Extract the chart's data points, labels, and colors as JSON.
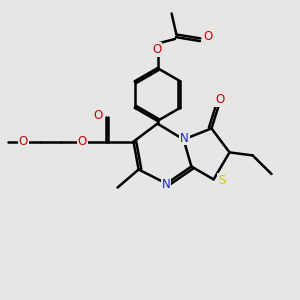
{
  "background_color": "#e6e6e6",
  "bond_color": "#000000",
  "nitrogen_color": "#2222cc",
  "oxygen_color": "#cc0000",
  "sulfur_color": "#cccc00",
  "line_width": 1.8,
  "fig_width": 3.0,
  "fig_height": 3.0,
  "dpi": 100,
  "xlim": [
    0,
    10
  ],
  "ylim": [
    0,
    10
  ]
}
